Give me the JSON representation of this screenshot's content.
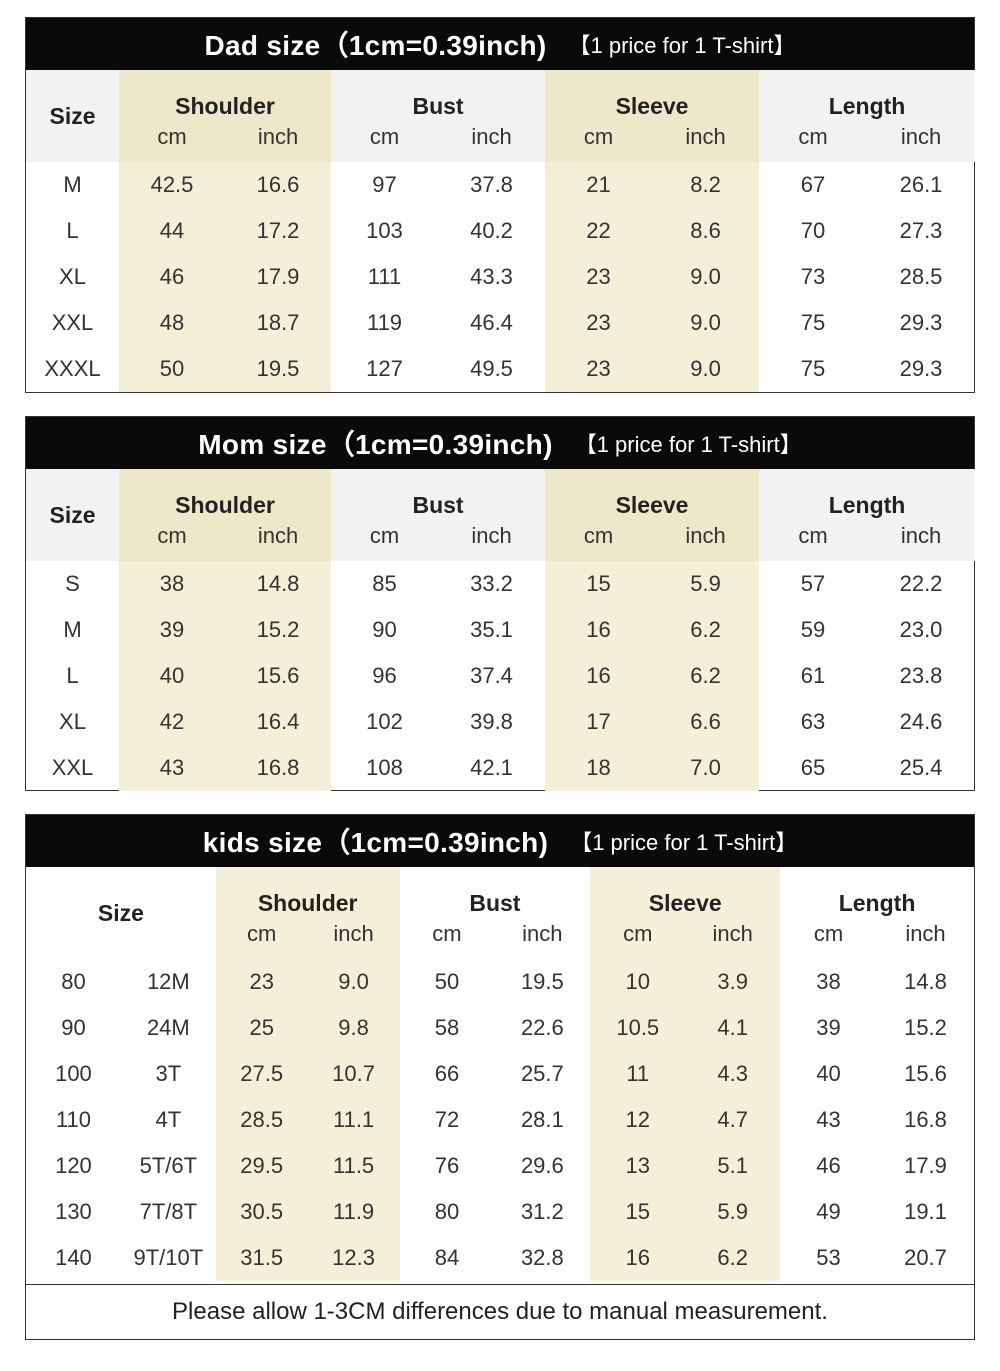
{
  "dad": {
    "title": "Dad size（1cm=0.39inch)",
    "note": "【1 price for 1 T-shirt】",
    "size_label": "Size",
    "groups": [
      "Shoulder",
      "Bust",
      "Sleeve",
      "Length"
    ],
    "unit_cm": "cm",
    "unit_inch": "inch",
    "rows": [
      [
        "M",
        "42.5",
        "16.6",
        "97",
        "37.8",
        "21",
        "8.2",
        "67",
        "26.1"
      ],
      [
        "L",
        "44",
        "17.2",
        "103",
        "40.2",
        "22",
        "8.6",
        "70",
        "27.3"
      ],
      [
        "XL",
        "46",
        "17.9",
        "111",
        "43.3",
        "23",
        "9.0",
        "73",
        "28.5"
      ],
      [
        "XXL",
        "48",
        "18.7",
        "119",
        "46.4",
        "23",
        "9.0",
        "75",
        "29.3"
      ],
      [
        "XXXL",
        "50",
        "19.5",
        "127",
        "49.5",
        "23",
        "9.0",
        "75",
        "29.3"
      ]
    ]
  },
  "mom": {
    "title": "Mom size（1cm=0.39inch)",
    "note": "【1 price for 1 T-shirt】",
    "size_label": "Size",
    "groups": [
      "Shoulder",
      "Bust",
      "Sleeve",
      "Length"
    ],
    "unit_cm": "cm",
    "unit_inch": "inch",
    "rows": [
      [
        "S",
        "38",
        "14.8",
        "85",
        "33.2",
        "15",
        "5.9",
        "57",
        "22.2"
      ],
      [
        "M",
        "39",
        "15.2",
        "90",
        "35.1",
        "16",
        "6.2",
        "59",
        "23.0"
      ],
      [
        "L",
        "40",
        "15.6",
        "96",
        "37.4",
        "16",
        "6.2",
        "61",
        "23.8"
      ],
      [
        "XL",
        "42",
        "16.4",
        "102",
        "39.8",
        "17",
        "6.6",
        "63",
        "24.6"
      ],
      [
        "XXL",
        "43",
        "16.8",
        "108",
        "42.1",
        "18",
        "7.0",
        "65",
        "25.4"
      ]
    ]
  },
  "kids": {
    "title": "kids size（1cm=0.39inch)",
    "note": "【1 price for 1 T-shirt】",
    "size_label": "Size",
    "groups": [
      "Shoulder",
      "Bust",
      "Sleeve",
      "Length"
    ],
    "unit_cm": "cm",
    "unit_inch": "inch",
    "rows": [
      [
        "80",
        "12M",
        "23",
        "9.0",
        "50",
        "19.5",
        "10",
        "3.9",
        "38",
        "14.8"
      ],
      [
        "90",
        "24M",
        "25",
        "9.8",
        "58",
        "22.6",
        "10.5",
        "4.1",
        "39",
        "15.2"
      ],
      [
        "100",
        "3T",
        "27.5",
        "10.7",
        "66",
        "25.7",
        "11",
        "4.3",
        "40",
        "15.6"
      ],
      [
        "110",
        "4T",
        "28.5",
        "11.1",
        "72",
        "28.1",
        "12",
        "4.7",
        "43",
        "16.8"
      ],
      [
        "120",
        "5T/6T",
        "29.5",
        "11.5",
        "76",
        "29.6",
        "13",
        "5.1",
        "46",
        "17.9"
      ],
      [
        "130",
        "7T/8T",
        "30.5",
        "11.9",
        "80",
        "31.2",
        "15",
        "5.9",
        "49",
        "19.1"
      ],
      [
        "140",
        "9T/10T",
        "31.5",
        "12.3",
        "84",
        "32.8",
        "16",
        "6.2",
        "53",
        "20.7"
      ]
    ]
  },
  "footer": "Please allow 1-3CM differences due to manual measurement.",
  "colors": {
    "header_bg": "#0a0a0a",
    "header_text": "#ffffff",
    "highlight_col": "#f3efd9",
    "header_row_bg": "#f2f2f2"
  }
}
